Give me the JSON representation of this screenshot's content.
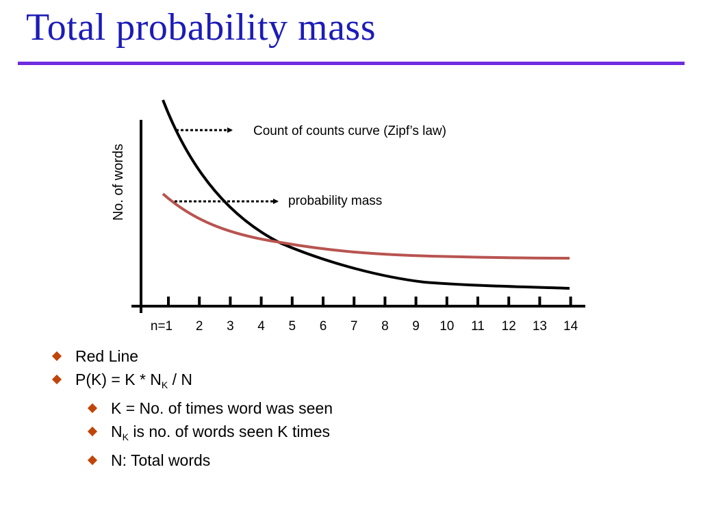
{
  "slide": {
    "title": "Total probability mass"
  },
  "diagram": {
    "ylabel": "No. of words",
    "annotations": [
      {
        "text": "Count of counts curve (Zipf’s law)",
        "points_to": "black curve"
      },
      {
        "text": "probability mass",
        "points_to": "red curve"
      }
    ],
    "ticks": [
      "n=1",
      "2",
      "3",
      "4",
      "5",
      "6",
      "7",
      "8",
      "9",
      "10",
      "11",
      "12",
      "13",
      "14"
    ],
    "colors": {
      "count_curve": "#000000",
      "mass_curve": "#b85450",
      "axis": "#000000"
    }
  },
  "bullets": [
    {
      "level": 1,
      "icon": "diamond-bullet-icon",
      "text": "Red Line"
    },
    {
      "level": 1,
      "icon": "diamond-bullet-icon",
      "parts": {
        "before": "P(K) =  K * N",
        "sub": "K",
        "after": " / N"
      }
    },
    {
      "level": 2,
      "icon": "diamond-bullet-icon",
      "text": "K = No. of times word was seen"
    },
    {
      "level": 2,
      "icon": "diamond-bullet-icon",
      "parts": {
        "before": "N",
        "sub": "K",
        "after": " is no. of words seen K times"
      }
    },
    {
      "level": 2,
      "icon": "diamond-bullet-icon",
      "text": "N: Total words"
    }
  ],
  "colors": {
    "title": "#1c1cb8",
    "title_rule": "#6f2ce0",
    "bullet": "#c0450a"
  }
}
